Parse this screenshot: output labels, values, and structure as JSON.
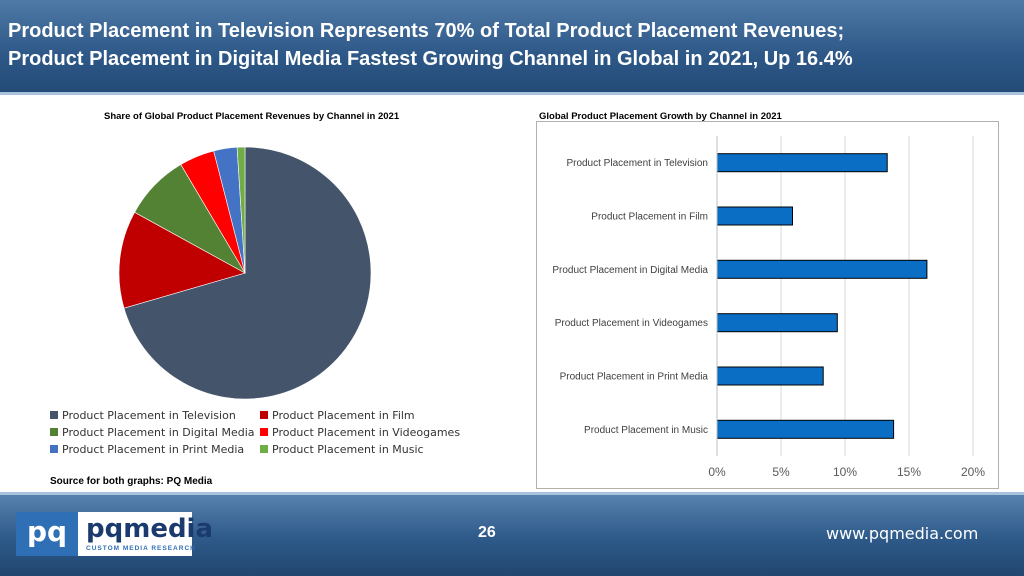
{
  "header": {
    "line1": "Product Placement in Television Represents 70% of Total Product Placement Revenues;",
    "line2": "Product Placement in Digital Media Fastest Growing Channel in Global in 2021, Up 16.4%"
  },
  "source": "Source for both graphs: PQ Media",
  "footer": {
    "page_number": "26",
    "website": "www.pqmedia.com",
    "logo_mark": "pq",
    "logo_name": "pqmedia",
    "logo_tagline": "CUSTOM MEDIA RESEARCH"
  },
  "chart_data": [
    {
      "type": "pie",
      "title": "Share of Global Product Placement Revenues by Channel  in 2021",
      "categories": [
        "Product Placement in Television",
        "Product Placement in Film",
        "Product Placement in Digital Media",
        "Product Placement in Videogames",
        "Product Placement in Print Media",
        "Product Placement in Music"
      ],
      "values": [
        70.5,
        12.5,
        8.5,
        4.5,
        3,
        1
      ],
      "colors": [
        "#44546a",
        "#c00000",
        "#548235",
        "#ff0000",
        "#4472c4",
        "#70ad47"
      ],
      "legend": "bottom"
    },
    {
      "type": "bar",
      "orientation": "horizontal",
      "title": "Global Product Placement Growth by Channel in 2021",
      "categories": [
        "Product Placement in Television",
        "Product Placement in Film",
        "Product Placement in Digital Media",
        "Product Placement in Videogames",
        "Product Placement in Print Media",
        "Product Placement in Music"
      ],
      "values": [
        13.3,
        5.9,
        16.4,
        9.4,
        8.3,
        13.8
      ],
      "xlim": [
        0,
        20
      ],
      "xticks": [
        "0%",
        "5%",
        "10%",
        "15%",
        "20%"
      ],
      "bar_color": "#0a6ec5",
      "grid": true
    }
  ]
}
